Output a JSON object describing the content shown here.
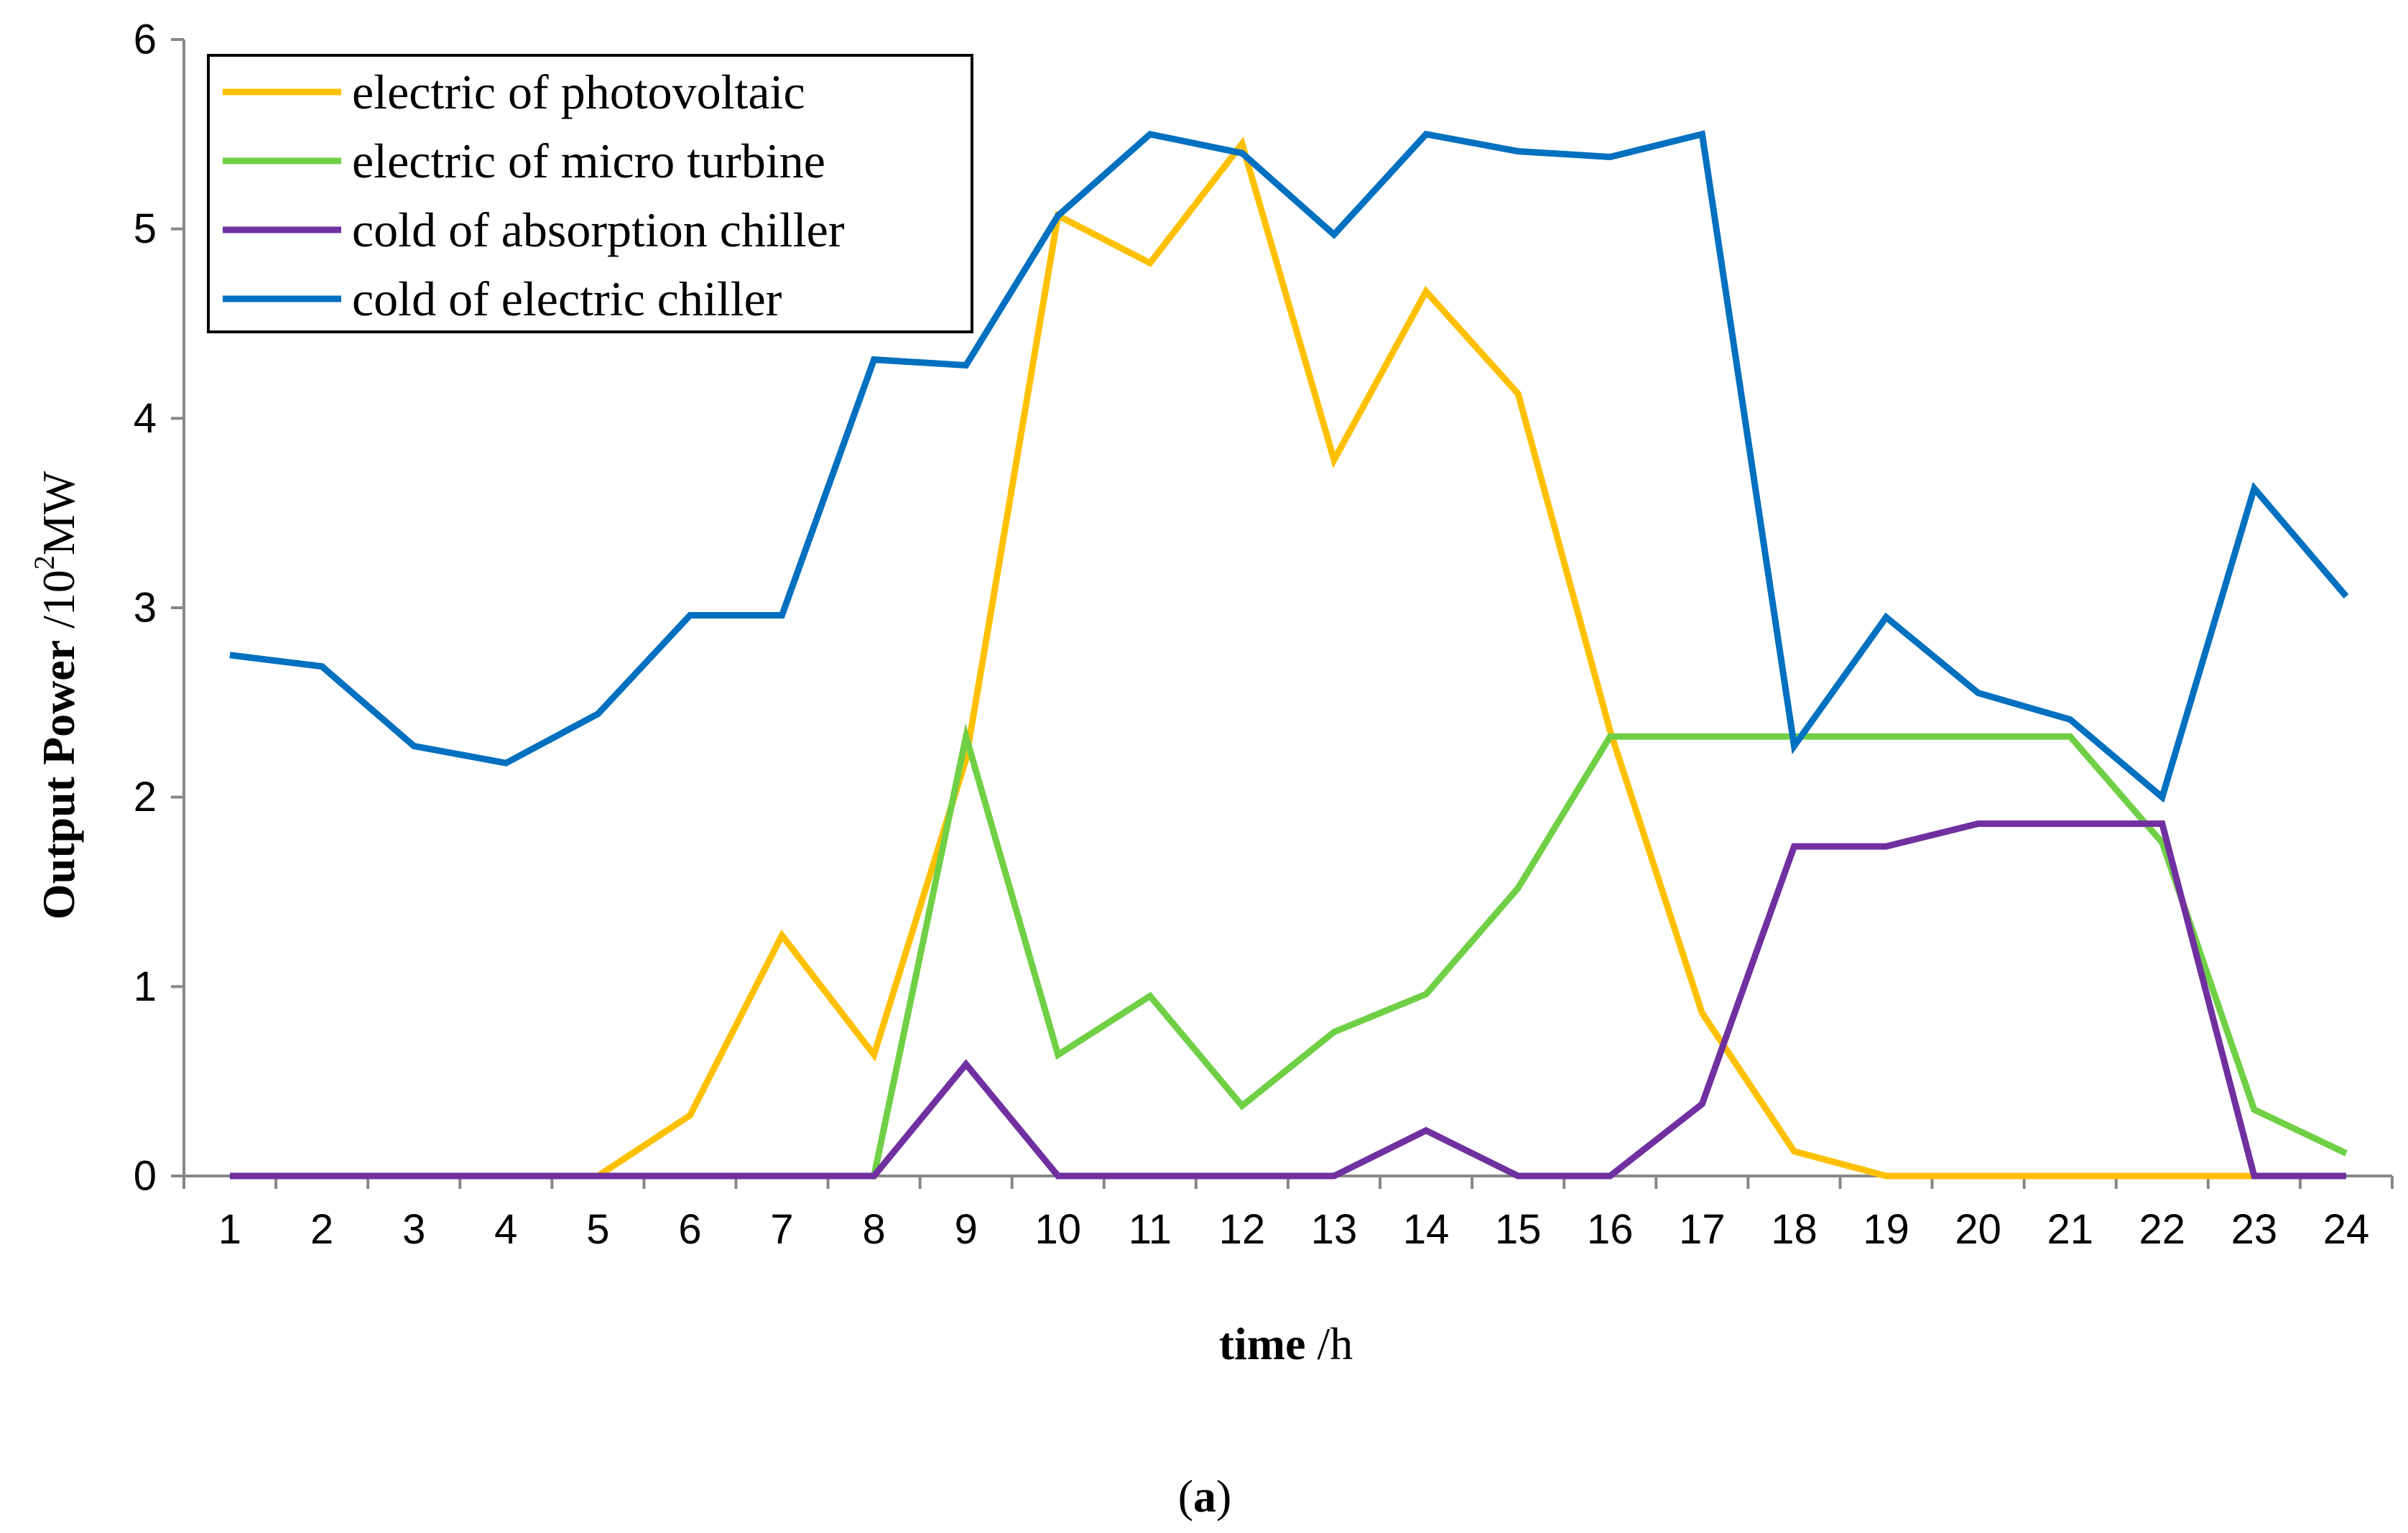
{
  "chart_data": {
    "type": "line",
    "title": "",
    "xlabel": {
      "bold": "time",
      "unit": " /h"
    },
    "ylabel": {
      "bold": "Output Power",
      "unit_prefix": " /10",
      "unit_sup": "2",
      "unit_suffix": "MW"
    },
    "caption": {
      "open": "(",
      "letter": "a",
      "close": ")"
    },
    "categories": [
      "1",
      "2",
      "3",
      "4",
      "5",
      "6",
      "7",
      "8",
      "9",
      "10",
      "11",
      "12",
      "13",
      "14",
      "15",
      "16",
      "17",
      "18",
      "19",
      "20",
      "21",
      "22",
      "23",
      "24"
    ],
    "ylim": [
      0,
      6
    ],
    "yticks": [
      "0",
      "1",
      "2",
      "3",
      "4",
      "5",
      "6"
    ],
    "grid": false,
    "legend_position": "top-left",
    "series": [
      {
        "name": "electric of photovoltaic",
        "color": "#FFC000",
        "values": [
          0,
          0,
          0,
          0,
          0,
          0.32,
          1.27,
          0.64,
          2.2,
          5.07,
          4.82,
          5.45,
          3.78,
          4.67,
          4.13,
          2.35,
          0.86,
          0.13,
          0,
          0,
          0,
          0,
          0,
          0
        ]
      },
      {
        "name": "electric of micro turbine",
        "color": "#70D045",
        "values": [
          0,
          0,
          0,
          0,
          0,
          0,
          0,
          0,
          2.32,
          0.64,
          0.95,
          0.37,
          0.76,
          0.96,
          1.52,
          2.32,
          2.32,
          2.32,
          2.32,
          2.32,
          2.32,
          1.76,
          0.35,
          0.12
        ]
      },
      {
        "name": "cold of absorption chiller",
        "color": "#7030A0",
        "values": [
          0,
          0,
          0,
          0,
          0,
          0,
          0,
          0,
          0.59,
          0,
          0,
          0,
          0,
          0.24,
          0,
          0,
          0.38,
          1.74,
          1.74,
          1.86,
          1.86,
          1.86,
          0,
          0
        ]
      },
      {
        "name": "cold of electric chiller",
        "color": "#0070C0",
        "values": [
          2.75,
          2.69,
          2.27,
          2.18,
          2.44,
          2.96,
          2.96,
          4.31,
          4.28,
          5.07,
          5.5,
          5.4,
          4.97,
          5.5,
          5.41,
          5.38,
          5.5,
          2.27,
          2.95,
          2.55,
          2.41,
          2.0,
          3.63,
          3.06
        ]
      }
    ]
  }
}
